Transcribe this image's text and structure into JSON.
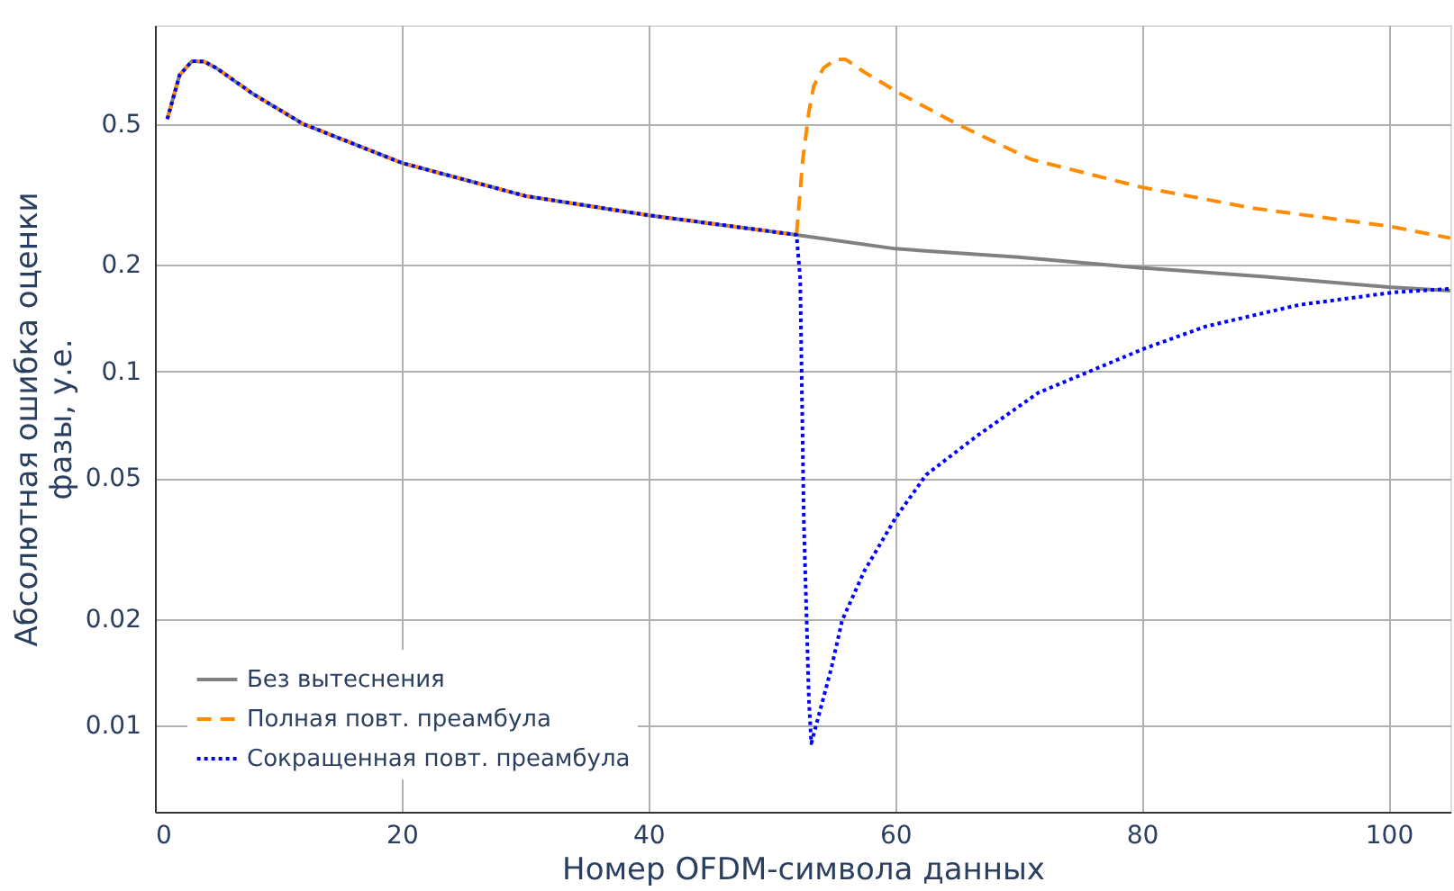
{
  "chart_data": {
    "type": "line",
    "xlabel": "Номер OFDM-символа данных",
    "ylabel": "Абсолютная ошибка оценки фазы, у.е.",
    "log": "y",
    "grid": true,
    "legend": "bottom left",
    "xlim": [
      0,
      105
    ],
    "xticks": [
      0,
      20,
      40,
      60,
      80,
      100
    ],
    "ylim": [
      0.0057,
      0.95
    ],
    "yticks": [
      0.01,
      0.02,
      0.05,
      0.1,
      0.2,
      0.5
    ],
    "series": [
      {
        "name": "Без вытеснения",
        "color": "#808080",
        "line_style": "solid",
        "x": [
          1,
          2,
          3,
          4,
          5,
          8,
          12,
          20,
          30,
          40,
          52,
          60,
          70,
          80,
          90,
          100,
          105
        ],
        "values": [
          0.516,
          0.687,
          0.752,
          0.75,
          0.718,
          0.606,
          0.5,
          0.388,
          0.313,
          0.276,
          0.243,
          0.222,
          0.21,
          0.196,
          0.185,
          0.173,
          0.169
        ]
      },
      {
        "name": "Полная повт. преамбула",
        "color": "#ff8c00",
        "line_style": "dashed",
        "x": [
          1,
          2,
          3,
          4,
          5,
          8,
          12,
          20,
          30,
          40,
          52,
          52.5,
          53,
          53.4,
          54.2,
          55.2,
          56,
          57.5,
          60.5,
          65,
          71,
          80,
          89,
          100,
          105
        ],
        "values": [
          0.516,
          0.687,
          0.752,
          0.75,
          0.718,
          0.606,
          0.5,
          0.388,
          0.313,
          0.276,
          0.243,
          0.393,
          0.54,
          0.64,
          0.72,
          0.76,
          0.76,
          0.7,
          0.606,
          0.5,
          0.397,
          0.331,
          0.289,
          0.257,
          0.238
        ]
      },
      {
        "name": "Сокращенная повт. преамбула",
        "color": "#0000ff",
        "line_style": "dotted",
        "x": [
          1,
          2,
          3,
          4,
          5,
          8,
          12,
          20,
          30,
          40,
          52,
          52.3,
          52.6,
          53,
          53.2,
          54.8,
          55.7,
          57.5,
          60,
          62.5,
          66.6,
          71.6,
          80.2,
          85.2,
          92.7,
          100.3,
          105
        ],
        "values": [
          0.516,
          0.687,
          0.752,
          0.75,
          0.718,
          0.606,
          0.5,
          0.388,
          0.313,
          0.276,
          0.243,
          0.183,
          0.037,
          0.0119,
          0.0089,
          0.0144,
          0.0198,
          0.0273,
          0.0384,
          0.051,
          0.0656,
          0.087,
          0.116,
          0.134,
          0.154,
          0.167,
          0.171
        ]
      }
    ]
  }
}
